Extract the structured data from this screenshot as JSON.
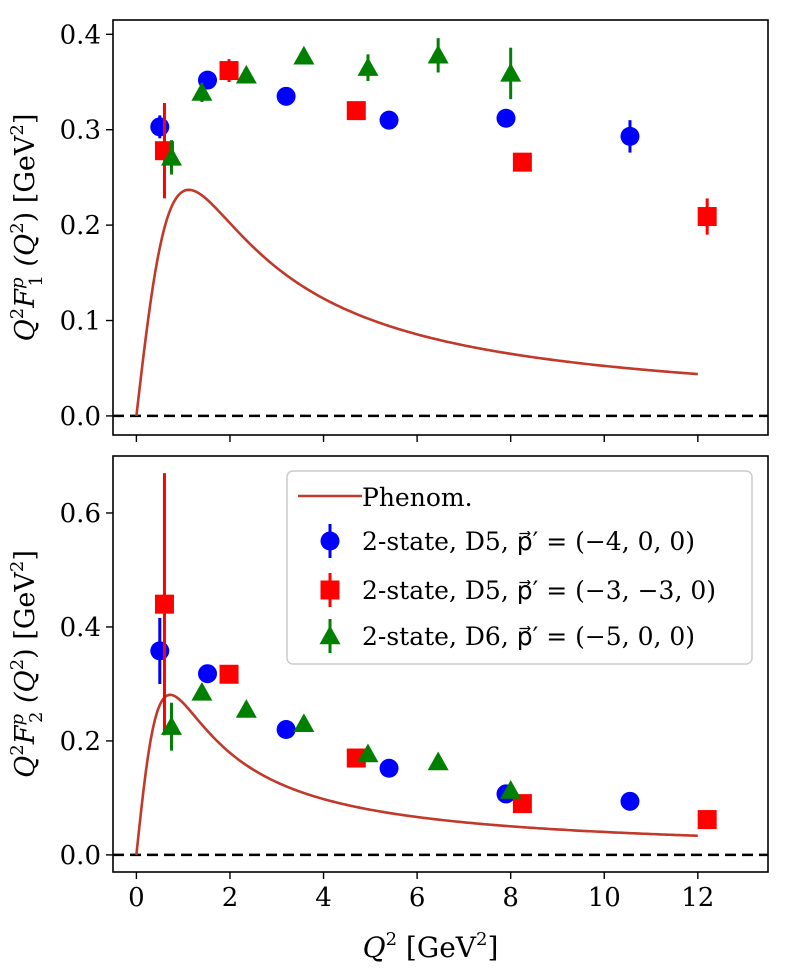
{
  "chart_data": [
    {
      "type": "scatter",
      "xlim": [
        -0.5,
        13.5
      ],
      "ylim": [
        -0.02,
        0.415
      ],
      "x_ticks": [
        0,
        2,
        4,
        6,
        8,
        10,
        12
      ],
      "y_ticks": [
        0.0,
        0.1,
        0.2,
        0.3,
        0.4
      ],
      "y_tick_labels": [
        "0.0",
        "0.1",
        "0.2",
        "0.3",
        "0.4"
      ],
      "show_x_tick_labels": false,
      "ylabel_parts": {
        "main": "Q",
        "sup1": "2",
        "F": "F",
        "sup2": "p",
        "sub": "1",
        "arg": " (Q",
        "sup3": "2",
        "close": ")",
        "unit": " [GeV",
        "sup4": "2",
        "unitclose": "]"
      },
      "legend": false,
      "grid": false,
      "series": [
        {
          "name": "2-state, D5, p⃗′ = (−4, 0, 0)",
          "marker": "circle",
          "color": "#0000ff",
          "points": [
            {
              "x": 0.5,
              "y": 0.303,
              "err": 0.012
            },
            {
              "x": 1.52,
              "y": 0.352,
              "err": 0.008
            },
            {
              "x": 3.2,
              "y": 0.335,
              "err": 0.005
            },
            {
              "x": 5.4,
              "y": 0.31,
              "err": 0.006
            },
            {
              "x": 7.9,
              "y": 0.312,
              "err": 0.009
            },
            {
              "x": 10.55,
              "y": 0.293,
              "err": 0.017
            }
          ]
        },
        {
          "name": "2-state, D5, p⃗′ = (−3, −3, 0)",
          "marker": "square",
          "color": "#ff0000",
          "points": [
            {
              "x": 0.6,
              "y": 0.278,
              "err": 0.05
            },
            {
              "x": 1.98,
              "y": 0.362,
              "err": 0.012
            },
            {
              "x": 4.7,
              "y": 0.32,
              "err": 0.008
            },
            {
              "x": 8.25,
              "y": 0.266,
              "err": 0.008
            },
            {
              "x": 12.2,
              "y": 0.209,
              "err": 0.019
            }
          ]
        },
        {
          "name": "2-state, D6, p⃗′ = (−5, 0, 0)",
          "marker": "triangle",
          "color": "#008000",
          "points": [
            {
              "x": 0.75,
              "y": 0.271,
              "err": 0.018
            },
            {
              "x": 1.4,
              "y": 0.339,
              "err": 0.01
            },
            {
              "x": 2.35,
              "y": 0.357,
              "err": 0.007
            },
            {
              "x": 3.58,
              "y": 0.377,
              "err": 0.008
            },
            {
              "x": 4.95,
              "y": 0.365,
              "err": 0.014
            },
            {
              "x": 6.45,
              "y": 0.378,
              "err": 0.018
            },
            {
              "x": 8.0,
              "y": 0.359,
              "err": 0.027
            }
          ]
        }
      ],
      "curve": {
        "name": "Phenom.",
        "color": "#c0392b",
        "peak_x": 1.12,
        "peak_y": 0.237,
        "x_end": 12,
        "y_end": 0.079
      },
      "reference_line": {
        "y": 0,
        "style": "dashed",
        "color": "#000000"
      }
    },
    {
      "type": "scatter",
      "xlim": [
        -0.5,
        13.5
      ],
      "ylim": [
        -0.03,
        0.7
      ],
      "x_ticks": [
        0,
        2,
        4,
        6,
        8,
        10,
        12
      ],
      "x_tick_labels": [
        "0",
        "2",
        "4",
        "6",
        "8",
        "10",
        "12"
      ],
      "y_ticks": [
        0.0,
        0.2,
        0.4,
        0.6
      ],
      "y_tick_labels": [
        "0.0",
        "0.2",
        "0.4",
        "0.6"
      ],
      "show_x_tick_labels": true,
      "xlabel_parts": {
        "main": "Q",
        "sup": "2",
        "unit": " [GeV",
        "sup2": "2",
        "close": "]"
      },
      "ylabel_parts": {
        "main": "Q",
        "sup1": "2",
        "F": "F",
        "sup2": "p",
        "sub": "2",
        "arg": " (Q",
        "sup3": "2",
        "close": ")",
        "unit": " [GeV",
        "sup4": "2",
        "unitclose": "]"
      },
      "legend": true,
      "legend_position": "upper-right",
      "grid": false,
      "series": [
        {
          "name": "2-state, D5, p⃗′ = (−4, 0, 0)",
          "marker": "circle",
          "color": "#0000ff",
          "points": [
            {
              "x": 0.5,
              "y": 0.358,
              "err": 0.058
            },
            {
              "x": 1.52,
              "y": 0.318,
              "err": 0.012
            },
            {
              "x": 3.2,
              "y": 0.22,
              "err": 0.006
            },
            {
              "x": 5.4,
              "y": 0.152,
              "err": 0.005
            },
            {
              "x": 7.9,
              "y": 0.107,
              "err": 0.005
            },
            {
              "x": 10.55,
              "y": 0.094,
              "err": 0.005
            }
          ]
        },
        {
          "name": "2-state, D5, p⃗′ = (−3, −3, 0)",
          "marker": "square",
          "color": "#ff0000",
          "points": [
            {
              "x": 0.6,
              "y": 0.44,
              "err": 0.23
            },
            {
              "x": 1.98,
              "y": 0.317,
              "err": 0.012
            },
            {
              "x": 4.7,
              "y": 0.17,
              "err": 0.006
            },
            {
              "x": 8.25,
              "y": 0.09,
              "err": 0.005
            },
            {
              "x": 12.2,
              "y": 0.062,
              "err": 0.005
            }
          ]
        },
        {
          "name": "2-state, D6, p⃗′ = (−5, 0, 0)",
          "marker": "triangle",
          "color": "#008000",
          "points": [
            {
              "x": 0.75,
              "y": 0.225,
              "err": 0.042
            },
            {
              "x": 1.4,
              "y": 0.285,
              "err": 0.01
            },
            {
              "x": 2.35,
              "y": 0.255,
              "err": 0.007
            },
            {
              "x": 3.58,
              "y": 0.23,
              "err": 0.006
            },
            {
              "x": 4.95,
              "y": 0.177,
              "err": 0.006
            },
            {
              "x": 6.45,
              "y": 0.163,
              "err": 0.008
            },
            {
              "x": 8.0,
              "y": 0.113,
              "err": 0.008
            }
          ]
        }
      ],
      "curve": {
        "name": "Phenom.",
        "color": "#c0392b",
        "peak_x": 0.72,
        "peak_y": 0.281,
        "x_end": 12,
        "y_end": 0.02
      },
      "reference_line": {
        "y": 0,
        "style": "dashed",
        "color": "#000000"
      }
    }
  ]
}
